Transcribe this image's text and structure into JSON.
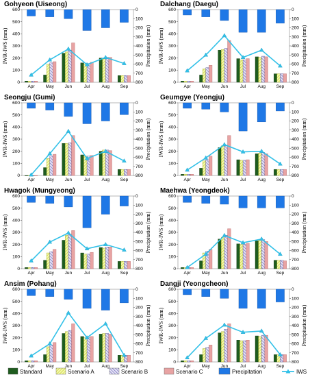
{
  "legend": [
    {
      "key": "standard",
      "label": "Standard",
      "fill": "#1f5c1f",
      "pattern": "solid"
    },
    {
      "key": "scenarioA",
      "label": "Scenario A",
      "fill": "#d9e94c",
      "pattern": "hatch-yellow"
    },
    {
      "key": "scenarioB",
      "label": "Scenario B",
      "fill": "#8b87c9",
      "pattern": "hatch-purple"
    },
    {
      "key": "scenarioC",
      "label": "Scenario C",
      "fill": "#e8a3a3",
      "pattern": "solid"
    },
    {
      "key": "precipitation",
      "label": "Precipitation",
      "fill": "#1f78e6",
      "pattern": "solid"
    },
    {
      "key": "iws",
      "label": "IWS",
      "fill": "#33c1e8",
      "pattern": "line-triangle"
    }
  ],
  "chart_data": [
    {
      "type": "bar",
      "title": "Gohyeon (Uiseong)",
      "ylabel": "IWR-IWS (mm)",
      "y2label": "Precipitation (mm)",
      "categories": [
        "Apr",
        "May",
        "Jun",
        "Jul",
        "Aug",
        "Sep"
      ],
      "ylim": [
        0,
        600
      ],
      "y2lim": [
        800,
        0
      ],
      "yticks": [
        0,
        100,
        200,
        300,
        400,
        500,
        600
      ],
      "y2ticks": [
        0,
        100,
        200,
        300,
        400,
        500,
        600,
        700,
        800
      ],
      "series": [
        {
          "key": "standard",
          "values": [
            10,
            60,
            240,
            160,
            200,
            55
          ]
        },
        {
          "key": "scenarioA",
          "values": [
            10,
            150,
            250,
            150,
            195,
            55
          ]
        },
        {
          "key": "scenarioB",
          "values": [
            10,
            160,
            265,
            155,
            205,
            55
          ]
        },
        {
          "key": "scenarioC",
          "values": [
            10,
            170,
            325,
            165,
            205,
            55
          ]
        },
        {
          "key": "precipitation",
          "values": [
            70,
            80,
            100,
            230,
            200,
            140
          ]
        },
        {
          "key": "iws",
          "values": [
            60,
            185,
            275,
            145,
            205,
            155
          ]
        }
      ]
    },
    {
      "type": "bar",
      "title": "Dalchang (Daegu)",
      "ylabel": "IWR-IWS (mm)",
      "y2label": "Precipitation (mm)",
      "categories": [
        "Apr",
        "May",
        "Jun",
        "Jul",
        "Aug",
        "Sep"
      ],
      "ylim": [
        0,
        600
      ],
      "y2lim": [
        800,
        0
      ],
      "yticks": [
        0,
        100,
        200,
        300,
        400,
        500,
        600
      ],
      "y2ticks": [
        0,
        100,
        200,
        300,
        400,
        500,
        600,
        700,
        800
      ],
      "series": [
        {
          "key": "standard",
          "values": [
            10,
            60,
            265,
            195,
            210,
            70
          ]
        },
        {
          "key": "scenarioA",
          "values": [
            10,
            110,
            270,
            185,
            205,
            70
          ]
        },
        {
          "key": "scenarioB",
          "values": [
            10,
            120,
            280,
            185,
            215,
            70
          ]
        },
        {
          "key": "scenarioC",
          "values": [
            10,
            140,
            345,
            195,
            210,
            70
          ]
        },
        {
          "key": "precipitation",
          "values": [
            60,
            80,
            120,
            250,
            250,
            150
          ]
        },
        {
          "key": "iws",
          "values": [
            95,
            225,
            385,
            205,
            265,
            135
          ]
        }
      ]
    },
    {
      "type": "bar",
      "title": "Seongju (Gumi)",
      "ylabel": "IWR-IWS (mm)",
      "y2label": "Precipitation (mm)",
      "categories": [
        "Apr",
        "May",
        "Jun",
        "Jul",
        "Aug",
        "Sep"
      ],
      "ylim": [
        0,
        600
      ],
      "y2lim": [
        800,
        0
      ],
      "yticks": [
        0,
        100,
        200,
        300,
        400,
        500,
        600
      ],
      "y2ticks": [
        0,
        100,
        200,
        300,
        400,
        500,
        600,
        700,
        800
      ],
      "series": [
        {
          "key": "standard",
          "values": [
            0,
            65,
            265,
            170,
            200,
            50
          ]
        },
        {
          "key": "scenarioA",
          "values": [
            0,
            140,
            265,
            160,
            210,
            50
          ]
        },
        {
          "key": "scenarioB",
          "values": [
            0,
            160,
            270,
            160,
            210,
            50
          ]
        },
        {
          "key": "scenarioC",
          "values": [
            0,
            175,
            330,
            165,
            205,
            50
          ]
        },
        {
          "key": "precipitation",
          "values": [
            60,
            80,
            150,
            230,
            200,
            130
          ]
        },
        {
          "key": "iws",
          "values": [
            5,
            180,
            365,
            140,
            200,
            120
          ]
        }
      ]
    },
    {
      "type": "bar",
      "title": "Geumgye (Yeongju)",
      "ylabel": "IWR-IWS (mm)",
      "y2label": "Precipitation (mm)",
      "categories": [
        "Apr",
        "May",
        "Jun",
        "Jul",
        "Aug",
        "Sep"
      ],
      "ylim": [
        0,
        600
      ],
      "y2lim": [
        800,
        0
      ],
      "yticks": [
        0,
        100,
        200,
        300,
        400,
        500,
        600
      ],
      "y2ticks": [
        0,
        100,
        200,
        300,
        400,
        500,
        600,
        700,
        800
      ],
      "series": [
        {
          "key": "standard",
          "values": [
            10,
            60,
            230,
            130,
            180,
            50
          ]
        },
        {
          "key": "scenarioA",
          "values": [
            10,
            120,
            245,
            125,
            185,
            50
          ]
        },
        {
          "key": "scenarioB",
          "values": [
            10,
            130,
            250,
            125,
            190,
            50
          ]
        },
        {
          "key": "scenarioC",
          "values": [
            10,
            160,
            330,
            130,
            180,
            50
          ]
        },
        {
          "key": "precipitation",
          "values": [
            60,
            70,
            100,
            310,
            210,
            90
          ]
        },
        {
          "key": "iws",
          "values": [
            45,
            145,
            255,
            195,
            200,
            95
          ]
        }
      ]
    },
    {
      "type": "bar",
      "title": "Hwagok (Mungyeong)",
      "ylabel": "IWR-IWS (mm)",
      "y2label": "Precipitation (mm)",
      "categories": [
        "Apr",
        "May",
        "Jun",
        "Jul",
        "Aug",
        "Sep"
      ],
      "ylim": [
        0,
        600
      ],
      "y2lim": [
        800,
        0
      ],
      "yticks": [
        0,
        100,
        200,
        300,
        400,
        500,
        600
      ],
      "y2ticks": [
        0,
        100,
        200,
        300,
        400,
        500,
        600,
        700,
        800
      ],
      "series": [
        {
          "key": "standard",
          "values": [
            10,
            70,
            235,
            130,
            175,
            60
          ]
        },
        {
          "key": "scenarioA",
          "values": [
            10,
            130,
            275,
            120,
            170,
            60
          ]
        },
        {
          "key": "scenarioB",
          "values": [
            10,
            140,
            285,
            120,
            180,
            60
          ]
        },
        {
          "key": "scenarioC",
          "values": [
            10,
            160,
            315,
            135,
            180,
            60
          ]
        },
        {
          "key": "precipitation",
          "values": [
            70,
            80,
            120,
            350,
            200,
            110
          ]
        },
        {
          "key": "iws",
          "values": [
            65,
            220,
            295,
            165,
            200,
            155
          ]
        }
      ]
    },
    {
      "type": "bar",
      "title": "Maehwa (Yeongdeok)",
      "ylabel": "IWR-IWS (mm)",
      "y2label": "Precipitation (mm)",
      "categories": [
        "Apr",
        "May",
        "Jun",
        "Jul",
        "Aug",
        "Sep"
      ],
      "ylim": [
        0,
        600
      ],
      "y2lim": [
        800,
        0
      ],
      "yticks": [
        0,
        100,
        200,
        300,
        400,
        500,
        600
      ],
      "y2ticks": [
        0,
        100,
        200,
        300,
        400,
        500,
        600,
        700,
        800
      ],
      "series": [
        {
          "key": "standard",
          "values": [
            10,
            65,
            245,
            205,
            230,
            70
          ]
        },
        {
          "key": "scenarioA",
          "values": [
            10,
            130,
            260,
            200,
            235,
            70
          ]
        },
        {
          "key": "scenarioB",
          "values": [
            10,
            145,
            275,
            200,
            240,
            70
          ]
        },
        {
          "key": "scenarioC",
          "values": [
            10,
            160,
            330,
            210,
            225,
            65
          ]
        },
        {
          "key": "precipitation",
          "values": [
            70,
            80,
            90,
            130,
            130,
            130
          ]
        },
        {
          "key": "iws",
          "values": [
            10,
            120,
            275,
            215,
            245,
            120
          ]
        }
      ]
    },
    {
      "type": "bar",
      "title": "Ansim (Pohang)",
      "ylabel": "IWR-IWS (mm)",
      "y2label": "Precipitation (mm)",
      "categories": [
        "Apr",
        "May",
        "Jun",
        "Jul",
        "Aug",
        "Sep"
      ],
      "ylim": [
        0,
        600
      ],
      "y2lim": [
        800,
        0
      ],
      "yticks": [
        0,
        100,
        200,
        300,
        400,
        500,
        600
      ],
      "y2ticks": [
        0,
        100,
        200,
        300,
        400,
        500,
        600,
        700,
        800
      ],
      "series": [
        {
          "key": "standard",
          "values": [
            10,
            60,
            235,
            210,
            230,
            55
          ]
        },
        {
          "key": "scenarioA",
          "values": [
            10,
            125,
            250,
            200,
            235,
            55
          ]
        },
        {
          "key": "scenarioB",
          "values": [
            10,
            140,
            260,
            200,
            235,
            55
          ]
        },
        {
          "key": "scenarioC",
          "values": [
            10,
            160,
            315,
            210,
            230,
            55
          ]
        },
        {
          "key": "precipitation",
          "values": [
            70,
            80,
            110,
            210,
            230,
            150
          ]
        },
        {
          "key": "iws",
          "values": [
            50,
            150,
            405,
            200,
            315,
            55
          ]
        }
      ]
    },
    {
      "type": "bar",
      "title": "Dangji (Yeongcheon)",
      "ylabel": "IWR-IWS (mm)",
      "y2label": "Precipitation (mm)",
      "categories": [
        "Apr",
        "May",
        "Jun",
        "Jul",
        "Aug",
        "Sep"
      ],
      "ylim": [
        0,
        600
      ],
      "y2lim": [
        800,
        0
      ],
      "yticks": [
        0,
        100,
        200,
        300,
        400,
        500,
        600
      ],
      "y2ticks": [
        0,
        100,
        200,
        300,
        400,
        500,
        600,
        700,
        800
      ],
      "series": [
        {
          "key": "standard",
          "values": [
            10,
            60,
            240,
            180,
            215,
            60
          ]
        },
        {
          "key": "scenarioA",
          "values": [
            10,
            110,
            250,
            175,
            210,
            60
          ]
        },
        {
          "key": "scenarioB",
          "values": [
            10,
            120,
            270,
            175,
            220,
            60
          ]
        },
        {
          "key": "scenarioC",
          "values": [
            10,
            140,
            315,
            180,
            220,
            60
          ]
        },
        {
          "key": "precipitation",
          "values": [
            60,
            80,
            100,
            210,
            210,
            140
          ]
        },
        {
          "key": "iws",
          "values": [
            35,
            195,
            305,
            245,
            255,
            60
          ]
        }
      ]
    }
  ]
}
